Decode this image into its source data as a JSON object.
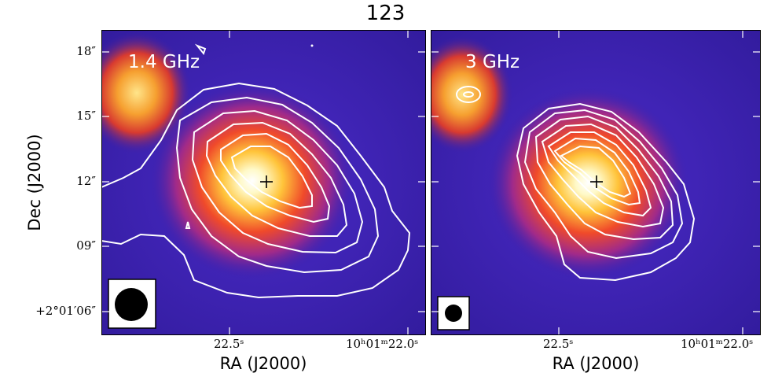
{
  "figure": {
    "title": "123",
    "xlabel": "RA (J2000)",
    "ylabel": "Dec (J2000)"
  },
  "panels": [
    {
      "frequency_label": "1.4 GHz",
      "beam": "large-beam"
    },
    {
      "frequency_label": "3 GHz",
      "beam": "small-beam"
    }
  ],
  "axes": {
    "y_ticks": [
      "18″",
      "15″",
      "12″",
      "09″",
      "+2°01′06″"
    ],
    "x_ticks_panel1": [
      "22.5ˢ",
      "10ʰ01ᵐ22.0ˢ"
    ],
    "x_ticks_panel2": [
      "22.5ˢ",
      "10ʰ01ᵐ22.0ˢ"
    ]
  },
  "colors": {
    "background": "#3a1fa8",
    "core": "#fffef0",
    "halo": "#e8402a",
    "contour": "#ffffff"
  }
}
